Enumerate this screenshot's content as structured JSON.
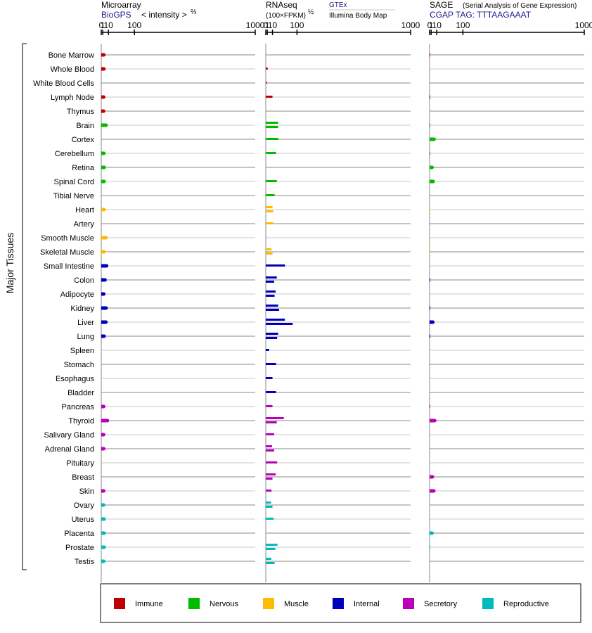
{
  "chart_data": {
    "type": "bar",
    "orientation": "horizontal",
    "y_axis_title": "Major Tissues",
    "tissues": [
      "Bone Marrow",
      "Whole Blood",
      "White Blood Cells",
      "Lymph Node",
      "Thymus",
      "Brain",
      "Cortex",
      "Cerebellum",
      "Retina",
      "Spinal Cord",
      "Tibial Nerve",
      "Heart",
      "Artery",
      "Smooth Muscle",
      "Skeletal Muscle",
      "Small Intestine",
      "Colon",
      "Adipocyte",
      "Kidney",
      "Liver",
      "Lung",
      "Spleen",
      "Stomach",
      "Esophagus",
      "Bladder",
      "Pancreas",
      "Thyroid",
      "Salivary Gland",
      "Adrenal Gland",
      "Pituitary",
      "Breast",
      "Skin",
      "Ovary",
      "Uterus",
      "Placenta",
      "Prostate",
      "Testis"
    ],
    "tissue_group": [
      "Immune",
      "Immune",
      "Immune",
      "Immune",
      "Immune",
      "Nervous",
      "Nervous",
      "Nervous",
      "Nervous",
      "Nervous",
      "Nervous",
      "Muscle",
      "Muscle",
      "Muscle",
      "Muscle",
      "Internal",
      "Internal",
      "Internal",
      "Internal",
      "Internal",
      "Internal",
      "Internal",
      "Internal",
      "Internal",
      "Internal",
      "Secretory",
      "Secretory",
      "Secretory",
      "Secretory",
      "Secretory",
      "Secretory",
      "Secretory",
      "Reproductive",
      "Reproductive",
      "Reproductive",
      "Reproductive",
      "Reproductive"
    ],
    "groups": [
      {
        "name": "Immune",
        "color": "#c00000"
      },
      {
        "name": "Nervous",
        "color": "#00bb00"
      },
      {
        "name": "Muscle",
        "color": "#ffbb00"
      },
      {
        "name": "Internal",
        "color": "#0000bb"
      },
      {
        "name": "Secretory",
        "color": "#bb00bb"
      },
      {
        "name": "Reproductive",
        "color": "#00bbbb"
      }
    ],
    "panels": [
      {
        "id": "microarray",
        "title": "Microarray",
        "subtitle": "BioGPS",
        "scale_note_main": "< intensity >",
        "scale_note_exp": "⅔",
        "ticks": [
          "0",
          "1",
          "10",
          "100",
          "1000"
        ],
        "xlim": [
          0,
          1000
        ],
        "series": [
          [
            2.2
          ],
          [
            2.3
          ],
          [],
          [
            2.0
          ],
          [
            1.9
          ],
          [
            5.5
          ],
          [],
          [
            2.2
          ],
          [
            2.6
          ],
          [
            2.5
          ],
          [],
          [
            2.6
          ],
          [],
          [
            5.5
          ],
          [
            2.5
          ],
          [
            6.5
          ],
          [
            3.8
          ],
          [
            2.1
          ],
          [
            5.5
          ],
          [
            5.3
          ],
          [
            2.5
          ],
          [],
          [],
          [],
          [],
          [
            2.0
          ],
          [
            8.0
          ],
          [
            1.9
          ],
          [
            2.0
          ],
          [],
          [],
          [
            2.0
          ],
          [
            1.8
          ],
          [
            2.5
          ],
          [
            2.5
          ],
          [
            2.6
          ],
          [
            2.0
          ]
        ]
      },
      {
        "id": "rnaseq",
        "title": "RNAseq",
        "subtitle_main": "(100×FPKM)",
        "subtitle_exp": "½",
        "legend_line1": "GTEx",
        "legend_line2": "Illumina Body Map",
        "ticks": [
          "0",
          "1",
          "10",
          "100",
          "1000"
        ],
        "xlim": [
          0,
          1000
        ],
        "series": [
          [],
          [
            1.6
          ],
          [
            0.6
          ],
          [
            10.0
          ],
          [],
          [
            25.0,
            25.0
          ],
          [
            26.0
          ],
          [
            19.0
          ],
          [],
          [
            21.0
          ],
          [
            15.0
          ],
          [
            10.0,
            12.0
          ],
          [
            11.5
          ],
          [],
          [
            8.0,
            10.0
          ],
          [
            48.0
          ],
          [
            21.0,
            14.0
          ],
          [
            18.0,
            15.0
          ],
          [
            25.0,
            28.0
          ],
          [
            48.0,
            80.0
          ],
          [
            25.0,
            22.0
          ],
          [
            3.5
          ],
          [
            19.0
          ],
          [
            10.0
          ],
          [
            19.0
          ],
          [
            10.0
          ],
          [
            44.0,
            21.0
          ],
          [
            14.0
          ],
          [
            9.0,
            14.0
          ],
          [
            22.0
          ],
          [
            18.0,
            10.0
          ],
          [
            8.0
          ],
          [
            7.0,
            10.0
          ],
          [
            12.5
          ],
          [],
          [
            23.0,
            17.0
          ],
          [
            7.5,
            15.0
          ]
        ]
      },
      {
        "id": "sage",
        "title": "SAGE",
        "title_note": "(Serial Analysis of Gene Expression)",
        "subtitle": "CGAP TAG: TTTAAGAAAT",
        "ticks": [
          "0",
          "1",
          "10",
          "100",
          "1000"
        ],
        "xlim": [
          0,
          1000
        ],
        "series": [
          [
            0.01
          ],
          [],
          [],
          [
            0.01
          ],
          [],
          [
            0.01
          ],
          [
            5.0
          ],
          [
            0.01
          ],
          [
            2.0
          ],
          [
            3.5
          ],
          [],
          [
            0.01
          ],
          [],
          [],
          [
            0.01
          ],
          [],
          [
            0.01
          ],
          [],
          [
            0.01
          ],
          [
            3.0
          ],
          [
            0.01
          ],
          [],
          [],
          [],
          [],
          [
            0.01
          ],
          [
            6.0
          ],
          [],
          [],
          [],
          [
            2.5
          ],
          [
            4.5
          ],
          [],
          [],
          [
            2.0
          ],
          [
            0.01
          ],
          []
        ]
      }
    ]
  }
}
